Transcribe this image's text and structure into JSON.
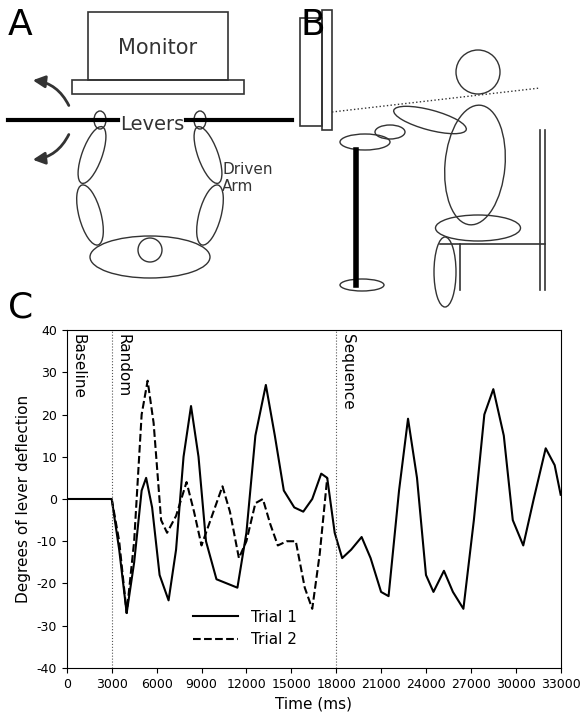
{
  "panel_labels": [
    "A",
    "B",
    "C"
  ],
  "diagram": {
    "monitor_label": "Monitor",
    "levers_label": "Levers",
    "arm_label": "Driven\nArm"
  },
  "chart_data": {
    "type": "line",
    "x_label": "Time (ms)",
    "y_label": "Degrees of lever deflection",
    "xlim": [
      0,
      33000
    ],
    "ylim": [
      -40,
      40
    ],
    "xticks": [
      0,
      3000,
      6000,
      9000,
      12000,
      15000,
      18000,
      21000,
      24000,
      27000,
      30000,
      33000
    ],
    "yticks": [
      -40,
      -30,
      -20,
      -10,
      0,
      10,
      20,
      30,
      40
    ],
    "legend": "lower center",
    "phases": [
      {
        "label": "Baseline",
        "start": 0
      },
      {
        "label": "Random",
        "start": 3000
      },
      {
        "label": "Sequence",
        "start": 18000
      }
    ],
    "series": [
      {
        "name": "Trial 1",
        "color": "#000000",
        "line_style": "solid",
        "x": [
          0,
          3000,
          3500,
          4000,
          4500,
          5000,
          5300,
          5700,
          6200,
          6800,
          7300,
          7800,
          8300,
          8800,
          9300,
          10000,
          10700,
          11400,
          12000,
          12600,
          13300,
          13900,
          14500,
          15200,
          15800,
          16400,
          17000,
          17400,
          17900,
          18400,
          19000,
          19700,
          20300,
          21000,
          21500,
          22200,
          22800,
          23400,
          24000,
          24500,
          25200,
          25800,
          26500,
          27200,
          27900,
          28500,
          29200,
          29800,
          30500,
          31200,
          32000,
          32600,
          33000
        ],
        "values": [
          0,
          0,
          -12,
          -27,
          -15,
          2,
          5,
          -2,
          -18,
          -24,
          -12,
          10,
          22,
          10,
          -10,
          -19,
          -20,
          -21,
          -8,
          15,
          27,
          15,
          2,
          -2,
          -3,
          0,
          6,
          5,
          -8,
          -14,
          -12,
          -9,
          -14,
          -22,
          -23,
          2,
          19,
          5,
          -18,
          -22,
          -17,
          -22,
          -26,
          -5,
          20,
          26,
          15,
          -5,
          -11,
          0,
          12,
          8,
          1
        ]
      },
      {
        "name": "Trial 2",
        "color": "#000000",
        "line_style": "dashed",
        "x": [
          3000,
          3500,
          4000,
          4500,
          5000,
          5400,
          5800,
          6300,
          6700,
          7300,
          8000,
          8500,
          9000,
          9600,
          10400,
          10900,
          11500,
          12000,
          12600,
          13100,
          13600,
          14100,
          14700,
          15300,
          15900,
          16400,
          16900,
          17400
        ],
        "values": [
          0,
          -10,
          -27,
          -10,
          20,
          28,
          18,
          -5,
          -8,
          -4,
          4,
          -3,
          -11,
          -5,
          3,
          -3,
          -14,
          -10,
          -1,
          0,
          -6,
          -11,
          -10,
          -10,
          -21,
          -26,
          -13,
          5
        ]
      }
    ]
  }
}
